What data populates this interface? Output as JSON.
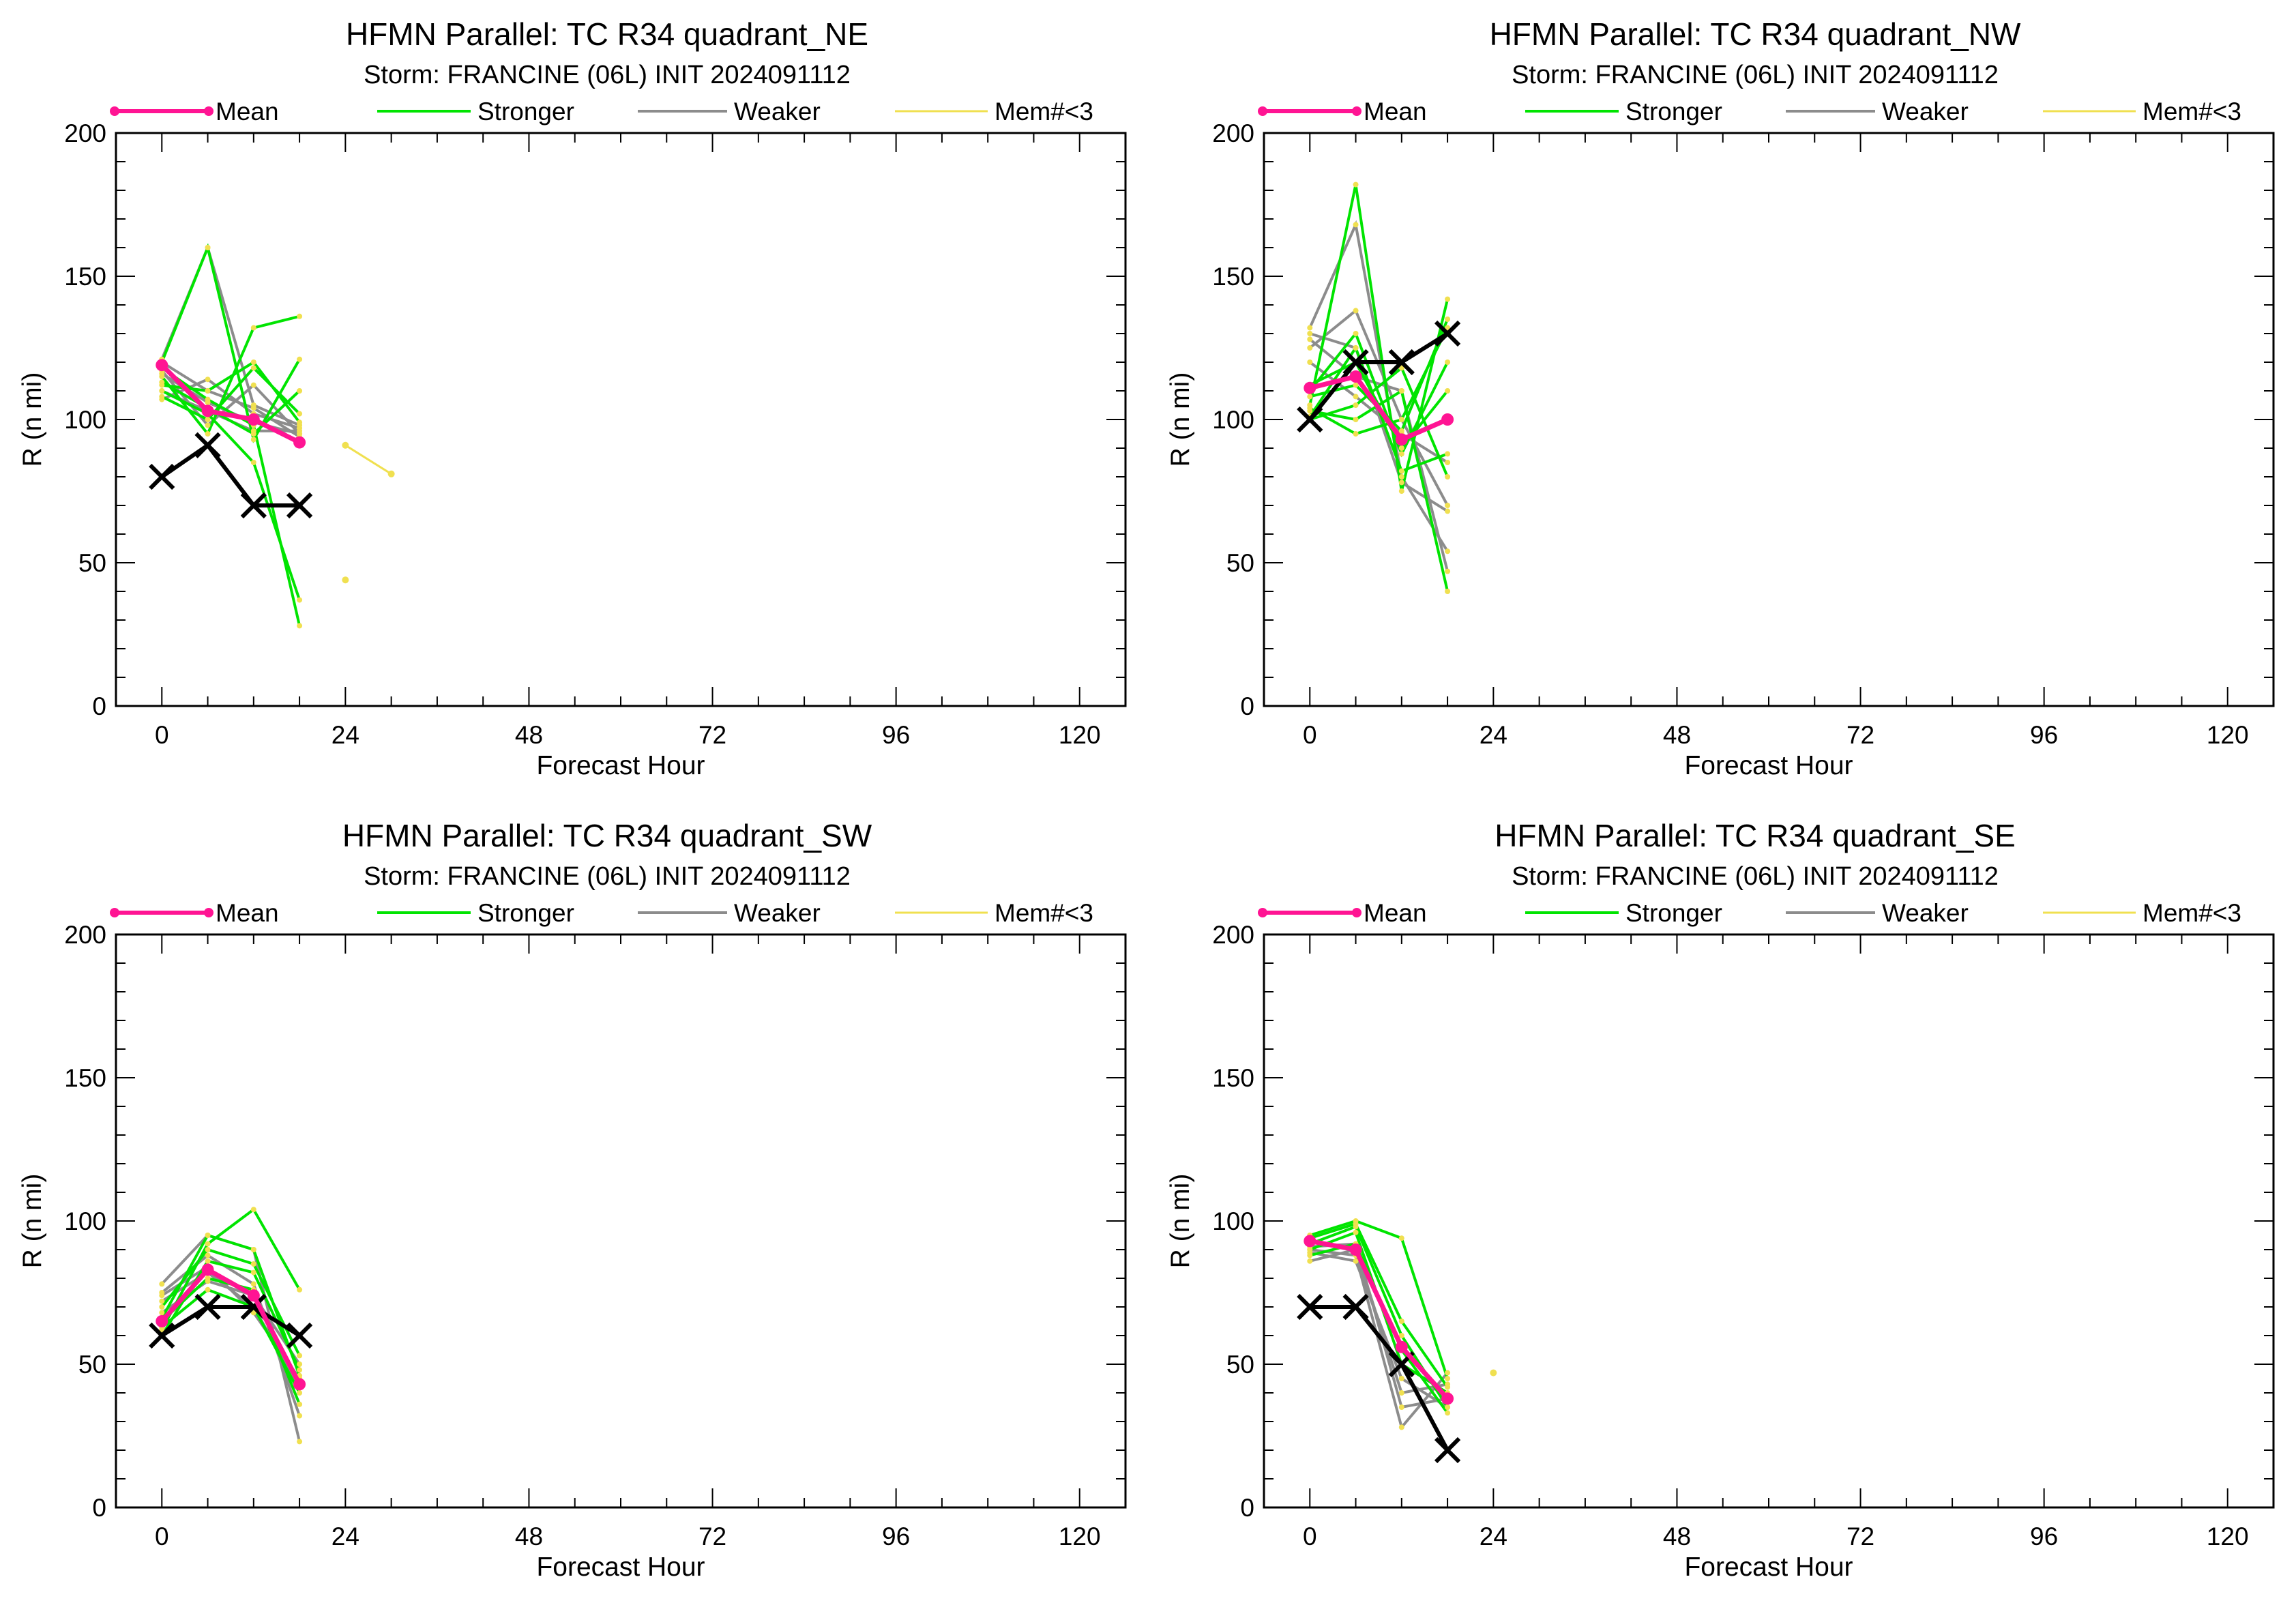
{
  "colors": {
    "mean": "#ff1493",
    "stronger": "#00e400",
    "weaker": "#8c8c8c",
    "few_members": "#f0e050",
    "best_track": "#000000"
  },
  "legend": {
    "mean": "Mean",
    "stronger": "Stronger",
    "weaker": "Weaker",
    "few_members": "Mem#<3"
  },
  "chart_data": [
    {
      "type": "line",
      "title": "HFMN Parallel: TC  R34 quadrant_NE",
      "subtitle": "Storm: FRANCINE (06L) INIT 2024091112",
      "xlabel": "Forecast Hour",
      "ylabel": "R (n mi)",
      "xlim": [
        -6,
        126
      ],
      "ylim": [
        0,
        200
      ],
      "xticks": [
        0,
        24,
        48,
        72,
        96,
        120
      ],
      "yticks": [
        0,
        50,
        100,
        150,
        200
      ],
      "mean": {
        "x": [
          0,
          6,
          12,
          18
        ],
        "y": [
          119,
          103,
          100,
          92
        ]
      },
      "best_track": {
        "x": [
          0,
          6,
          12,
          18
        ],
        "y": [
          80,
          91,
          70,
          70
        ]
      },
      "stronger": [
        [
          118,
          107,
          98,
          28
        ],
        [
          115,
          95,
          132,
          136
        ],
        [
          112,
          110,
          120,
          99
        ],
        [
          110,
          102,
          85,
          37
        ],
        [
          120,
          160,
          93,
          121
        ],
        [
          113,
          104,
          95,
          110
        ],
        [
          108,
          100,
          118,
          102
        ]
      ],
      "weaker": [
        [
          121,
          160,
          105,
          98
        ],
        [
          116,
          106,
          99,
          95
        ],
        [
          110,
          103,
          96,
          96
        ],
        [
          107,
          114,
          102,
          97
        ],
        [
          117,
          98,
          112,
          95
        ],
        [
          120,
          110,
          104,
          94
        ]
      ],
      "few_members": [
        {
          "x": [
            24,
            30
          ],
          "y": [
            91,
            81
          ]
        },
        {
          "x": [
            24
          ],
          "y": [
            44
          ]
        }
      ]
    },
    {
      "type": "line",
      "title": "HFMN Parallel: TC  R34 quadrant_NW",
      "subtitle": "Storm: FRANCINE (06L) INIT 2024091112",
      "xlabel": "Forecast Hour",
      "ylabel": "R (n mi)",
      "xlim": [
        -6,
        126
      ],
      "ylim": [
        0,
        200
      ],
      "xticks": [
        0,
        24,
        48,
        72,
        96,
        120
      ],
      "yticks": [
        0,
        50,
        100,
        150,
        200
      ],
      "mean": {
        "x": [
          0,
          6,
          12,
          18
        ],
        "y": [
          111,
          115,
          93,
          100
        ]
      },
      "best_track": {
        "x": [
          0,
          6,
          12,
          18
        ],
        "y": [
          100,
          120,
          120,
          130
        ]
      },
      "stronger": [
        [
          105,
          182,
          75,
          142
        ],
        [
          101,
          125,
          82,
          88
        ],
        [
          108,
          112,
          96,
          135
        ],
        [
          103,
          100,
          110,
          40
        ],
        [
          110,
          130,
          88,
          120
        ],
        [
          100,
          105,
          118,
          80
        ],
        [
          112,
          120,
          90,
          110
        ],
        [
          104,
          95,
          100,
          132
        ]
      ],
      "weaker": [
        [
          132,
          168,
          80,
          54
        ],
        [
          125,
          138,
          100,
          70
        ],
        [
          128,
          115,
          110,
          47
        ],
        [
          120,
          108,
          95,
          85
        ],
        [
          130,
          125,
          78,
          68
        ]
      ],
      "few_members": []
    },
    {
      "type": "line",
      "title": "HFMN Parallel: TC  R34 quadrant_SW",
      "subtitle": "Storm: FRANCINE (06L) INIT 2024091112",
      "xlabel": "Forecast Hour",
      "ylabel": "R (n mi)",
      "xlim": [
        -6,
        126
      ],
      "ylim": [
        0,
        200
      ],
      "xticks": [
        0,
        24,
        48,
        72,
        96,
        120
      ],
      "yticks": [
        0,
        50,
        100,
        150,
        200
      ],
      "mean": {
        "x": [
          0,
          6,
          12,
          18
        ],
        "y": [
          65,
          83,
          74,
          43
        ]
      },
      "best_track": {
        "x": [
          0,
          6,
          12,
          18
        ],
        "y": [
          60,
          70,
          70,
          60
        ]
      },
      "stronger": [
        [
          62,
          92,
          104,
          76
        ],
        [
          60,
          86,
          82,
          48
        ],
        [
          65,
          80,
          76,
          36
        ],
        [
          70,
          90,
          85,
          53
        ],
        [
          63,
          76,
          70,
          40
        ],
        [
          66,
          95,
          90,
          46
        ]
      ],
      "weaker": [
        [
          78,
          95,
          90,
          23
        ],
        [
          75,
          88,
          78,
          32
        ],
        [
          72,
          82,
          70,
          42
        ],
        [
          68,
          79,
          74,
          50
        ],
        [
          74,
          84,
          68,
          45
        ]
      ],
      "few_members": []
    },
    {
      "type": "line",
      "title": "HFMN Parallel: TC  R34 quadrant_SE",
      "subtitle": "Storm: FRANCINE (06L) INIT 2024091112",
      "xlabel": "Forecast Hour",
      "ylabel": "R (n mi)",
      "xlim": [
        -6,
        126
      ],
      "ylim": [
        0,
        200
      ],
      "xticks": [
        0,
        24,
        48,
        72,
        96,
        120
      ],
      "yticks": [
        0,
        50,
        100,
        150,
        200
      ],
      "mean": {
        "x": [
          0,
          6,
          12,
          18
        ],
        "y": [
          93,
          90,
          56,
          38
        ]
      },
      "best_track": {
        "x": [
          0,
          6,
          12,
          18
        ],
        "y": [
          70,
          70,
          50,
          20
        ]
      },
      "stronger": [
        [
          95,
          100,
          94,
          45
        ],
        [
          92,
          98,
          60,
          35
        ],
        [
          90,
          96,
          50,
          40
        ],
        [
          88,
          92,
          55,
          33
        ],
        [
          94,
          99,
          65,
          42
        ]
      ],
      "weaker": [
        [
          90,
          88,
          28,
          47
        ],
        [
          86,
          90,
          40,
          43
        ],
        [
          89,
          86,
          45,
          35
        ],
        [
          91,
          92,
          35,
          38
        ]
      ],
      "few_members": [
        {
          "x": [
            24
          ],
          "y": [
            47
          ]
        }
      ]
    }
  ]
}
